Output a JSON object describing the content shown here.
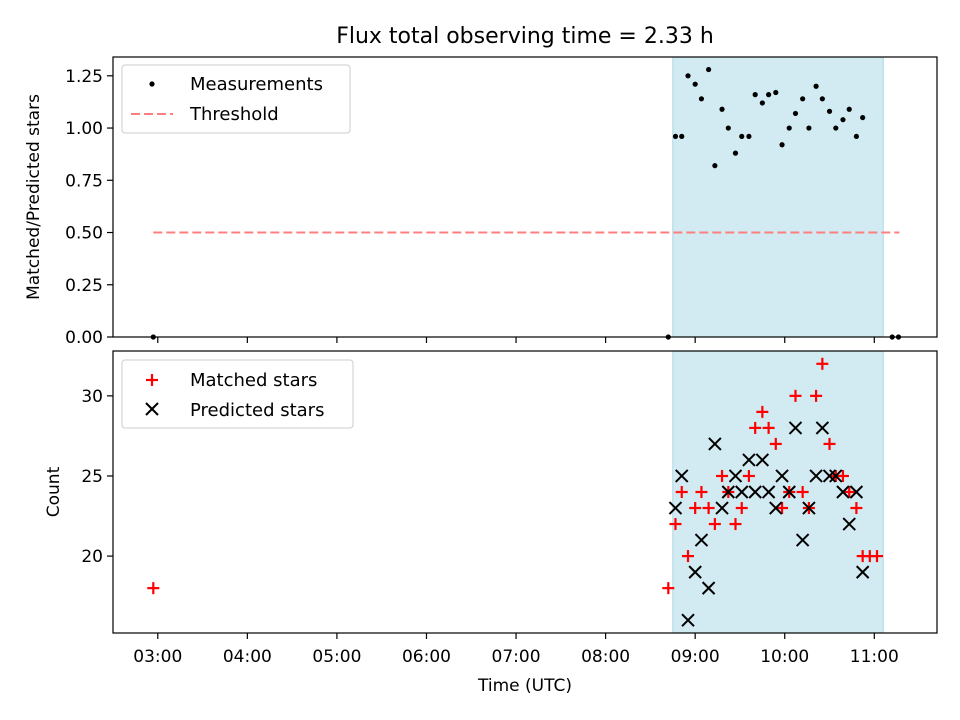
{
  "chart_data": [
    {
      "type": "scatter",
      "title": "Flux total observing time = 2.33 h",
      "ylabel": "Matched/Predicted stars",
      "xlabel": "",
      "ylim": [
        0,
        1.34
      ],
      "yticks": [
        "0.00",
        "0.25",
        "0.50",
        "0.75",
        "1.00",
        "1.25"
      ],
      "ytick_values": [
        0,
        0.25,
        0.5,
        0.75,
        1.0,
        1.25
      ],
      "legend_position": "top-left",
      "shaded_span": {
        "x_start": 8.75,
        "x_end": 11.1,
        "color": "#add8e6"
      },
      "threshold": {
        "name": "Threshold",
        "y": 0.5,
        "x_start": 2.95,
        "x_end": 11.28,
        "color": "#ff7f7f"
      },
      "series": [
        {
          "name": "Measurements",
          "marker": "dot",
          "color": "#000000",
          "points": [
            [
              2.95,
              0
            ],
            [
              8.7,
              0
            ],
            [
              8.78,
              0.96
            ],
            [
              8.85,
              0.96
            ],
            [
              8.92,
              1.25
            ],
            [
              9.0,
              1.21
            ],
            [
              9.07,
              1.14
            ],
            [
              9.15,
              1.28
            ],
            [
              9.22,
              0.82
            ],
            [
              9.3,
              1.09
            ],
            [
              9.37,
              1.0
            ],
            [
              9.45,
              0.88
            ],
            [
              9.52,
              0.96
            ],
            [
              9.6,
              0.96
            ],
            [
              9.67,
              1.16
            ],
            [
              9.75,
              1.12
            ],
            [
              9.82,
              1.16
            ],
            [
              9.9,
              1.17
            ],
            [
              9.97,
              0.92
            ],
            [
              10.05,
              1.0
            ],
            [
              10.12,
              1.07
            ],
            [
              10.2,
              1.14
            ],
            [
              10.27,
              1.0
            ],
            [
              10.35,
              1.2
            ],
            [
              10.42,
              1.14
            ],
            [
              10.5,
              1.08
            ],
            [
              10.57,
              1.0
            ],
            [
              10.65,
              1.04
            ],
            [
              10.72,
              1.09
            ],
            [
              10.8,
              0.96
            ],
            [
              10.87,
              1.05
            ],
            [
              11.2,
              0
            ],
            [
              11.27,
              0
            ]
          ]
        }
      ]
    },
    {
      "type": "scatter",
      "title": "",
      "ylabel": "Count",
      "xlabel": "Time (UTC)",
      "ylim": [
        15.2,
        32.8
      ],
      "yticks": [
        "20",
        "25",
        "30"
      ],
      "ytick_values": [
        20,
        25,
        30
      ],
      "xlim": [
        2.5,
        11.7
      ],
      "xticks": [
        "03:00",
        "04:00",
        "05:00",
        "06:00",
        "07:00",
        "08:00",
        "09:00",
        "10:00",
        "11:00"
      ],
      "xtick_values": [
        3,
        4,
        5,
        6,
        7,
        8,
        9,
        10,
        11
      ],
      "legend_position": "top-left",
      "shaded_span": {
        "x_start": 8.75,
        "x_end": 11.1,
        "color": "#add8e6"
      },
      "series": [
        {
          "name": "Matched stars",
          "marker": "plus",
          "color": "#ff0000",
          "points": [
            [
              2.95,
              18
            ],
            [
              8.7,
              18
            ],
            [
              8.78,
              22
            ],
            [
              8.85,
              24
            ],
            [
              8.92,
              20
            ],
            [
              9.0,
              23
            ],
            [
              9.07,
              24
            ],
            [
              9.15,
              23
            ],
            [
              9.22,
              22
            ],
            [
              9.3,
              25
            ],
            [
              9.37,
              24
            ],
            [
              9.45,
              22
            ],
            [
              9.52,
              23
            ],
            [
              9.6,
              25
            ],
            [
              9.67,
              28
            ],
            [
              9.75,
              29
            ],
            [
              9.82,
              28
            ],
            [
              9.9,
              27
            ],
            [
              9.97,
              23
            ],
            [
              10.05,
              24
            ],
            [
              10.12,
              30
            ],
            [
              10.2,
              24
            ],
            [
              10.27,
              23
            ],
            [
              10.35,
              30
            ],
            [
              10.42,
              32
            ],
            [
              10.5,
              27
            ],
            [
              10.57,
              25
            ],
            [
              10.65,
              25
            ],
            [
              10.72,
              24
            ],
            [
              10.8,
              23
            ],
            [
              10.87,
              20
            ],
            [
              10.95,
              20
            ],
            [
              11.03,
              20
            ]
          ]
        },
        {
          "name": "Predicted stars",
          "marker": "x",
          "color": "#000000",
          "points": [
            [
              8.78,
              23
            ],
            [
              8.85,
              25
            ],
            [
              8.92,
              16
            ],
            [
              9.0,
              19
            ],
            [
              9.07,
              21
            ],
            [
              9.15,
              18
            ],
            [
              9.22,
              27
            ],
            [
              9.3,
              23
            ],
            [
              9.37,
              24
            ],
            [
              9.45,
              25
            ],
            [
              9.52,
              24
            ],
            [
              9.6,
              26
            ],
            [
              9.67,
              24
            ],
            [
              9.75,
              26
            ],
            [
              9.82,
              24
            ],
            [
              9.9,
              23
            ],
            [
              9.97,
              25
            ],
            [
              10.05,
              24
            ],
            [
              10.12,
              28
            ],
            [
              10.2,
              21
            ],
            [
              10.27,
              23
            ],
            [
              10.35,
              25
            ],
            [
              10.42,
              28
            ],
            [
              10.5,
              25
            ],
            [
              10.57,
              25
            ],
            [
              10.65,
              24
            ],
            [
              10.72,
              22
            ],
            [
              10.8,
              24
            ],
            [
              10.87,
              19
            ]
          ]
        }
      ]
    }
  ]
}
